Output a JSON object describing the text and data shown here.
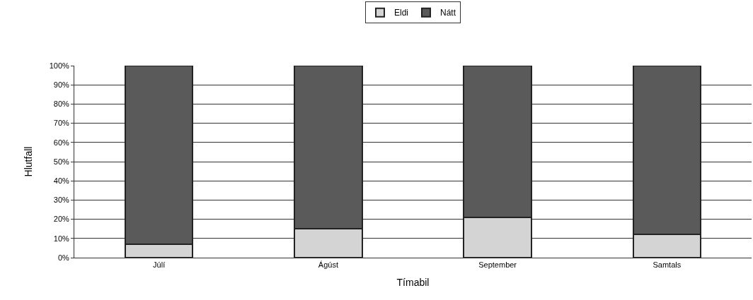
{
  "chart_data": {
    "type": "bar",
    "stacked": true,
    "xlabel": "Tímabil",
    "ylabel": "Hlutfall",
    "categories": [
      "Júlí",
      "Ágúst",
      "September",
      "Samtals"
    ],
    "series": [
      {
        "name": "Eldi",
        "color": "#d4d4d4",
        "values": [
          7,
          15,
          21,
          12
        ]
      },
      {
        "name": "Nátt",
        "color": "#5a5a5a",
        "values": [
          93,
          85,
          79,
          88
        ]
      }
    ],
    "ylim": [
      0,
      100
    ],
    "yticks": [
      {
        "value": 0,
        "label": "0%"
      },
      {
        "value": 10,
        "label": "10%"
      },
      {
        "value": 20,
        "label": "20%"
      },
      {
        "value": 30,
        "label": "30%"
      },
      {
        "value": 40,
        "label": "40%"
      },
      {
        "value": 50,
        "label": "50%"
      },
      {
        "value": 60,
        "label": "60%"
      },
      {
        "value": 70,
        "label": "70%"
      },
      {
        "value": 80,
        "label": "80%"
      },
      {
        "value": 90,
        "label": "90%"
      },
      {
        "value": 100,
        "label": "100%"
      }
    ],
    "grid": "y",
    "legend": "top"
  }
}
